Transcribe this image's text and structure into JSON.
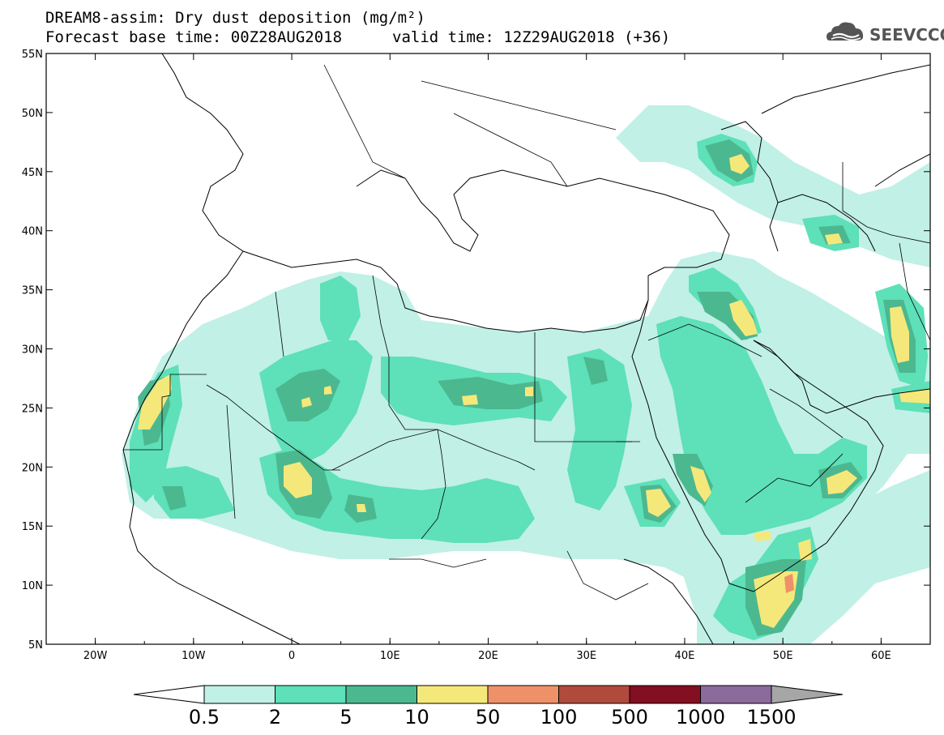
{
  "header": {
    "title_line1": "DREAM8-assim: Dry dust deposition (mg/m²)",
    "title_line2": "Forecast base time: 00Z28AUG2018",
    "title_line3": "valid time: 12Z29AUG2018 (+36)",
    "logo_text": "SEEVCCC",
    "logo_icon": "cloud-logo-icon"
  },
  "map": {
    "lon_range": [
      -25,
      65
    ],
    "lat_range": [
      5,
      55
    ],
    "lon_ticks": [
      "20W",
      "10W",
      "0",
      "10E",
      "20E",
      "30E",
      "40E",
      "50E",
      "60E"
    ],
    "lat_ticks": [
      "5N",
      "10N",
      "15N",
      "20N",
      "25N",
      "30N",
      "35N",
      "40N",
      "45N",
      "50N",
      "55N"
    ]
  },
  "colorbar": {
    "labels": [
      "0.5",
      "2",
      "5",
      "10",
      "50",
      "100",
      "500",
      "1000",
      "1500"
    ],
    "colors": [
      "#ffffff",
      "#c0f0e6",
      "#5ee0b8",
      "#4cb890",
      "#f5e87a",
      "#ee9168",
      "#b04a3c",
      "#820f22",
      "#8b6a9c",
      "#a6a6a6"
    ]
  }
}
